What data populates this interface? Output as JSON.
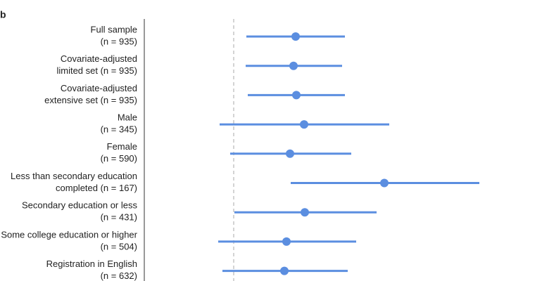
{
  "chart_data": {
    "type": "forest",
    "panel_label": "b",
    "categories": [
      [
        "Full sample",
        "(n = 935)"
      ],
      [
        "Covariate-adjusted",
        "limited set (n = 935)"
      ],
      [
        "Covariate-adjusted",
        "extensive set (n = 935)"
      ],
      [
        "Male",
        "(n = 345)"
      ],
      [
        "Female",
        "(n = 590)"
      ],
      [
        "Less than secondary education",
        "completed (n = 167)"
      ],
      [
        "Secondary education or less",
        "(n = 431)"
      ],
      [
        "Some college education or higher",
        "(n = 504)"
      ],
      [
        "Registration in English",
        "(n = 632)"
      ]
    ],
    "values": [
      0.88,
      0.85,
      0.89,
      1.0,
      0.8,
      2.14,
      1.01,
      0.75,
      0.72
    ],
    "lower": [
      0.18,
      0.17,
      0.2,
      -0.2,
      -0.05,
      0.81,
      0.01,
      -0.22,
      -0.16
    ],
    "upper": [
      1.58,
      1.54,
      1.58,
      2.21,
      1.67,
      3.49,
      2.03,
      1.74,
      1.62
    ],
    "color": "#5b8ee0",
    "ref_line": 0,
    "xlim": [
      -1.27,
      4.38
    ]
  }
}
